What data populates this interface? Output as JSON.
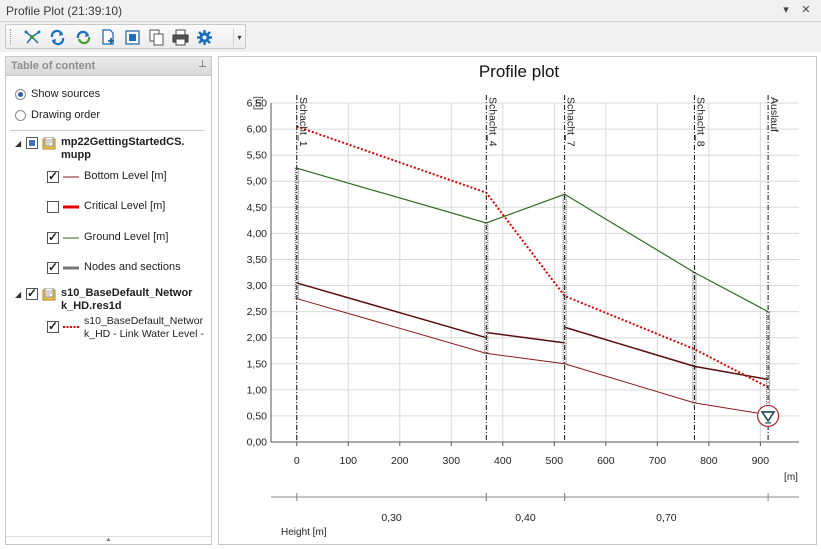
{
  "window": {
    "title": "Profile Plot (21:39:10)",
    "menu_icon": "dropdown-arrow-icon",
    "close_icon": "close-icon"
  },
  "toolbar": {
    "icons": [
      "select-network-icon",
      "refresh-icon",
      "reload-icon",
      "add-page-icon",
      "zoom-extent-icon",
      "copy-icon",
      "print-icon",
      "settings-icon"
    ],
    "overflow_icon": "dropdown-arrow-icon"
  },
  "toc": {
    "title": "Table of content",
    "pin_icon": "pin-icon",
    "options": [
      {
        "label": "Show sources",
        "selected": true
      },
      {
        "label": "Drawing order",
        "selected": false
      }
    ],
    "sources": [
      {
        "name_lines": [
          "mp22GettingStartedCS.",
          "mupp"
        ],
        "check": "partial",
        "items": [
          {
            "label": "Bottom Level [m]",
            "checked": true,
            "color": "#8b1a1a",
            "style": "solid",
            "width": 1
          },
          {
            "label": "Critical Level [m]",
            "checked": false,
            "color": "#e00000",
            "style": "solid",
            "width": 3
          },
          {
            "label": "Ground Level [m]",
            "checked": true,
            "color": "#2e6b1e",
            "style": "solid",
            "width": 1
          },
          {
            "label": "Nodes and sections",
            "checked": true,
            "color": "#777777",
            "style": "solid",
            "width": 3
          }
        ]
      },
      {
        "name_lines": [
          "s10_BaseDefault_Networ",
          "k_HD.res1d"
        ],
        "check": "checked",
        "items": [
          {
            "label_lines": [
              "s10_BaseDefault_Networ",
              "k_HD - Link Water Level -"
            ],
            "checked": true,
            "color": "#e00000",
            "style": "dotted",
            "width": 2
          }
        ]
      }
    ]
  },
  "plot": {
    "title": "Profile plot",
    "y_unit": "[m]",
    "x_unit": "[m]",
    "height_label": "Height [m]",
    "colors": {
      "bottom": "#8b1a1a",
      "ground": "#2e6b1e",
      "water": "#e00000",
      "node": "#555555",
      "marker": "#b22222"
    }
  },
  "chart_data": {
    "type": "line",
    "title": "Profile plot",
    "xlabel": "[m]",
    "ylabel": "[m]",
    "xlim": [
      -50,
      975
    ],
    "ylim": [
      0,
      6.5
    ],
    "x_ticks": [
      0,
      100,
      200,
      300,
      400,
      500,
      600,
      700,
      800,
      900
    ],
    "y_ticks": [
      "0,00",
      "0,50",
      "1,00",
      "1,50",
      "2,00",
      "2,50",
      "3,00",
      "3,50",
      "4,00",
      "4,50",
      "5,00",
      "5,50",
      "6,00",
      "6,50"
    ],
    "nodes": [
      {
        "name": "Schacht_1",
        "x": 0,
        "bottom": 2.75,
        "ground": 5.25
      },
      {
        "name": "Schacht_4",
        "x": 368,
        "bottom": 1.7,
        "ground": 4.2
      },
      {
        "name": "Schacht_7",
        "x": 520,
        "bottom": 1.5,
        "ground": 4.75
      },
      {
        "name": "Schacht_8",
        "x": 772,
        "bottom": 0.75,
        "ground": 3.25
      },
      {
        "name": "Auslauf",
        "x": 915,
        "bottom": 0.52,
        "ground": 2.5
      }
    ],
    "series": [
      {
        "name": "Ground Level [m]",
        "x": [
          0,
          368,
          520,
          772,
          915
        ],
        "y": [
          5.25,
          4.2,
          4.75,
          3.25,
          2.5
        ]
      },
      {
        "name": "Bottom Level [m]",
        "x": [
          0,
          368,
          520,
          772,
          915
        ],
        "y": [
          2.75,
          1.7,
          1.5,
          0.75,
          0.52
        ]
      },
      {
        "name": "Pipe Top",
        "segments": [
          {
            "x": [
              0,
              368
            ],
            "y": [
              3.05,
              2.0
            ]
          },
          {
            "x": [
              368,
              520
            ],
            "y": [
              2.1,
              1.9
            ]
          },
          {
            "x": [
              520,
              772
            ],
            "y": [
              2.2,
              1.45
            ]
          },
          {
            "x": [
              772,
              915
            ],
            "y": [
              1.45,
              1.2
            ]
          }
        ]
      },
      {
        "name": "s10_BaseDefault_Network_HD - Link Water Level -",
        "x": [
          0,
          368,
          520,
          772,
          915
        ],
        "y": [
          6.05,
          4.78,
          2.8,
          1.78,
          1.05
        ]
      }
    ],
    "outlet_marker": {
      "x": 915,
      "y": 0.5
    },
    "height_bands": [
      {
        "x_from": 0,
        "x_to": 368,
        "value": "0,30"
      },
      {
        "x_from": 368,
        "x_to": 520,
        "value": "0,40"
      },
      {
        "x_from": 520,
        "x_to": 915,
        "value": "0,70"
      }
    ]
  }
}
